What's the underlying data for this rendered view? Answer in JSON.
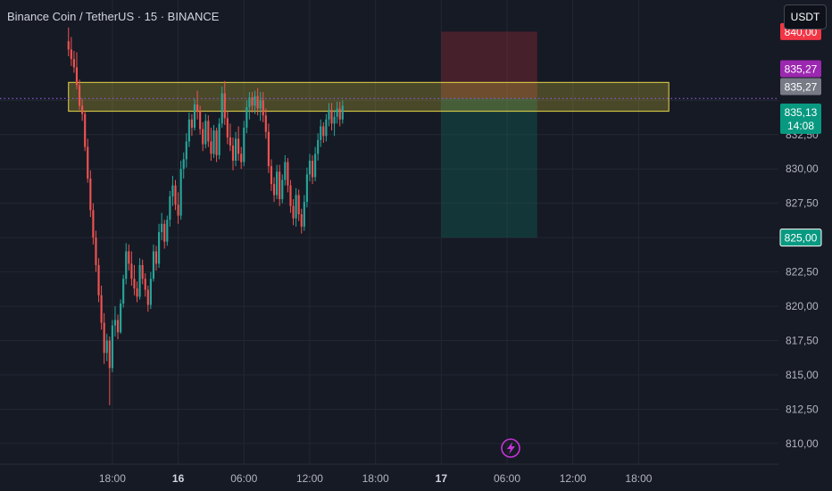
{
  "header": {
    "title": "Binance Coin / TetherUS · 15 · BINANCE",
    "currency_button": "USDT"
  },
  "colors": {
    "background": "#161a25",
    "bullish": "#26a69a",
    "bearish": "#ef5350",
    "zone_fill": "rgba(255,235,59,0.22)",
    "zone_stroke": "#e8d94a",
    "stop_zone": "rgba(242,54,69,0.22)",
    "target_zone": "rgba(8,153,129,0.22)",
    "tag_red": "#f23645",
    "tag_purple": "#9c27b0",
    "tag_gray": "#787b86",
    "tag_green": "#089981"
  },
  "chart_data": {
    "type": "candlestick",
    "symbol": "Binance Coin / TetherUS",
    "interval": "15",
    "exchange": "BINANCE",
    "currency": "USDT",
    "ylim": [
      808.5,
      842.3
    ],
    "y_ticks": [
      {
        "value": 832.5,
        "label": "832,50"
      },
      {
        "value": 830.0,
        "label": "830,00"
      },
      {
        "value": 827.5,
        "label": "827,50"
      },
      {
        "value": 822.5,
        "label": "822,50"
      },
      {
        "value": 820.0,
        "label": "820,00"
      },
      {
        "value": 817.5,
        "label": "817,50"
      },
      {
        "value": 815.0,
        "label": "815,00"
      },
      {
        "value": 812.5,
        "label": "812,50"
      },
      {
        "value": 810.0,
        "label": "810,00"
      }
    ],
    "x_range": [
      -41,
      243
    ],
    "x_ticks": [
      {
        "bar": 0,
        "label": "18:00",
        "bold": false
      },
      {
        "bar": 24,
        "label": "16",
        "bold": true
      },
      {
        "bar": 48,
        "label": "06:00",
        "bold": false
      },
      {
        "bar": 72,
        "label": "12:00",
        "bold": false
      },
      {
        "bar": 96,
        "label": "18:00",
        "bold": false
      },
      {
        "bar": 120,
        "label": "17",
        "bold": true
      },
      {
        "bar": 144,
        "label": "06:00",
        "bold": false
      },
      {
        "bar": 168,
        "label": "12:00",
        "bold": false
      },
      {
        "bar": 192,
        "label": "18:00",
        "bold": false
      }
    ],
    "price_tags": [
      {
        "value": 840.0,
        "label": "840,00",
        "color": "#f23645"
      },
      {
        "value": 835.27,
        "label": "835,27",
        "color": "#9c27b0",
        "offset": -1
      },
      {
        "value": 835.27,
        "label": "835,27",
        "color": "#787b86",
        "offset": 0
      },
      {
        "value": 835.13,
        "label": "835,13",
        "sub": "14:08",
        "color": "#089981",
        "offset": 1
      },
      {
        "value": 825.0,
        "label": "825,00",
        "color": "#089981",
        "outline": true
      }
    ],
    "current_price": 835.13,
    "resistance_zone": {
      "low": 834.2,
      "high": 836.3,
      "start_bar": -16,
      "end_bar": 203
    },
    "position": {
      "start_bar": 120,
      "end_bar": 155,
      "entry": 835.13,
      "stop": 840.0,
      "target": 825.0
    },
    "candles_note": "[open, high, low, close] per 15-minute bar, first bar index -16",
    "candles": [
      [
        839.3,
        840.3,
        838.2,
        838.7
      ],
      [
        838.7,
        839.6,
        837.5,
        838.0
      ],
      [
        838.0,
        838.6,
        837.0,
        837.4
      ],
      [
        837.4,
        838.5,
        835.8,
        836.1
      ],
      [
        836.1,
        836.5,
        834.3,
        834.6
      ],
      [
        834.6,
        835.1,
        833.5,
        834.0
      ],
      [
        834.0,
        834.2,
        831.3,
        831.6
      ],
      [
        831.6,
        832.2,
        829.0,
        829.3
      ],
      [
        829.3,
        829.9,
        826.5,
        827.0
      ],
      [
        827.0,
        827.5,
        824.5,
        825.0
      ],
      [
        825.0,
        825.5,
        822.5,
        823.0
      ],
      [
        823.0,
        823.5,
        820.3,
        820.8
      ],
      [
        820.8,
        821.5,
        818.3,
        818.8
      ],
      [
        818.8,
        819.5,
        815.8,
        816.6
      ],
      [
        816.6,
        818.0,
        816.0,
        817.5
      ],
      [
        817.5,
        817.8,
        812.8,
        815.5
      ],
      [
        815.5,
        819.0,
        815.2,
        818.6
      ],
      [
        818.6,
        820.0,
        817.8,
        819.0
      ],
      [
        819.0,
        819.4,
        817.6,
        818.1
      ],
      [
        818.1,
        820.5,
        818.0,
        820.2
      ],
      [
        820.2,
        822.3,
        819.9,
        822.0
      ],
      [
        822.0,
        824.6,
        821.6,
        824.0
      ],
      [
        824.0,
        824.5,
        822.6,
        823.1
      ],
      [
        823.1,
        824.0,
        821.5,
        822.0
      ],
      [
        822.0,
        823.0,
        820.8,
        821.3
      ],
      [
        821.3,
        821.8,
        820.3,
        820.7
      ],
      [
        820.7,
        823.5,
        820.5,
        823.0
      ],
      [
        823.0,
        823.4,
        821.6,
        822.0
      ],
      [
        822.0,
        822.4,
        820.7,
        821.2
      ],
      [
        821.2,
        821.5,
        819.6,
        820.1
      ],
      [
        820.1,
        822.5,
        819.8,
        822.0
      ],
      [
        822.0,
        824.5,
        821.8,
        824.0
      ],
      [
        824.0,
        824.4,
        822.6,
        823.1
      ],
      [
        823.1,
        826.0,
        822.8,
        825.4
      ],
      [
        825.4,
        826.8,
        824.8,
        826.0
      ],
      [
        826.0,
        826.3,
        824.2,
        824.7
      ],
      [
        824.7,
        826.6,
        824.4,
        826.3
      ],
      [
        826.3,
        828.4,
        825.8,
        828.0
      ],
      [
        828.0,
        829.5,
        827.3,
        828.8
      ],
      [
        828.8,
        829.2,
        827.0,
        827.4
      ],
      [
        827.4,
        828.3,
        826.0,
        826.6
      ],
      [
        826.6,
        830.6,
        826.3,
        830.0
      ],
      [
        830.0,
        831.2,
        829.3,
        830.7
      ],
      [
        830.7,
        832.6,
        830.1,
        832.0
      ],
      [
        832.0,
        834.1,
        831.6,
        833.6
      ],
      [
        833.6,
        834.0,
        832.4,
        833.0
      ],
      [
        833.0,
        835.1,
        832.8,
        834.7
      ],
      [
        834.7,
        835.7,
        833.6,
        834.2
      ],
      [
        834.2,
        834.6,
        832.5,
        832.9
      ],
      [
        832.9,
        833.4,
        831.3,
        831.8
      ],
      [
        831.8,
        834.0,
        831.5,
        833.5
      ],
      [
        833.5,
        833.9,
        831.6,
        832.0
      ],
      [
        832.0,
        833.0,
        830.6,
        831.1
      ],
      [
        831.1,
        833.2,
        830.8,
        832.8
      ],
      [
        832.8,
        833.0,
        830.5,
        831.0
      ],
      [
        831.0,
        833.7,
        830.7,
        833.3
      ],
      [
        833.3,
        836.0,
        833.0,
        835.5
      ],
      [
        835.5,
        836.4,
        833.2,
        833.7
      ],
      [
        833.7,
        834.2,
        831.8,
        832.3
      ],
      [
        832.3,
        833.3,
        831.3,
        831.7
      ],
      [
        831.7,
        832.3,
        829.9,
        830.6
      ],
      [
        830.6,
        832.7,
        830.2,
        832.2
      ],
      [
        832.2,
        833.1,
        830.6,
        831.1
      ],
      [
        831.1,
        831.6,
        830.0,
        830.5
      ],
      [
        830.5,
        833.5,
        830.2,
        833.0
      ],
      [
        833.0,
        835.0,
        832.6,
        834.5
      ],
      [
        834.5,
        835.6,
        833.6,
        835.2
      ],
      [
        835.2,
        835.6,
        834.1,
        834.6
      ],
      [
        834.6,
        835.7,
        834.0,
        835.3
      ],
      [
        835.3,
        835.9,
        833.9,
        834.4
      ],
      [
        834.4,
        835.6,
        833.5,
        835.0
      ],
      [
        835.0,
        835.6,
        833.4,
        833.9
      ],
      [
        833.9,
        834.4,
        832.2,
        832.7
      ],
      [
        832.7,
        833.3,
        829.7,
        830.2
      ],
      [
        830.2,
        830.7,
        828.4,
        828.9
      ],
      [
        828.9,
        829.4,
        827.6,
        828.1
      ],
      [
        828.1,
        830.3,
        827.8,
        829.8
      ],
      [
        829.8,
        830.3,
        827.3,
        827.8
      ],
      [
        827.8,
        829.6,
        827.5,
        829.2
      ],
      [
        829.2,
        831.0,
        828.8,
        830.5
      ],
      [
        830.5,
        830.8,
        828.3,
        828.8
      ],
      [
        828.8,
        829.2,
        826.8,
        827.3
      ],
      [
        827.3,
        827.8,
        825.9,
        826.4
      ],
      [
        826.4,
        828.6,
        825.8,
        828.1
      ],
      [
        828.1,
        828.5,
        826.2,
        826.7
      ],
      [
        826.7,
        827.1,
        825.3,
        825.8
      ],
      [
        825.8,
        828.1,
        825.5,
        827.6
      ],
      [
        827.6,
        830.1,
        827.2,
        829.6
      ],
      [
        829.6,
        831.1,
        829.1,
        830.6
      ],
      [
        830.6,
        831.0,
        828.9,
        829.4
      ],
      [
        829.4,
        831.6,
        829.1,
        831.1
      ],
      [
        831.1,
        832.6,
        830.6,
        832.1
      ],
      [
        832.1,
        833.6,
        831.6,
        833.1
      ],
      [
        833.1,
        833.4,
        831.9,
        832.4
      ],
      [
        832.4,
        834.0,
        832.0,
        833.6
      ],
      [
        833.6,
        834.8,
        833.1,
        834.3
      ],
      [
        834.3,
        834.8,
        832.8,
        833.3
      ],
      [
        833.3,
        834.3,
        832.4,
        833.8
      ],
      [
        833.8,
        834.9,
        833.3,
        834.4
      ],
      [
        834.4,
        834.9,
        833.1,
        833.6
      ],
      [
        833.6,
        835.0,
        833.3,
        834.6
      ]
    ]
  }
}
